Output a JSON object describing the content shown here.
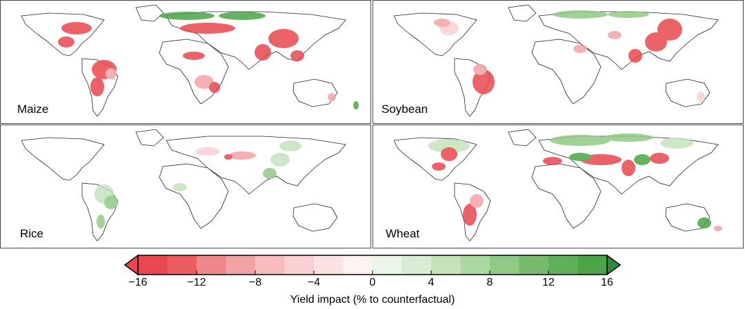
{
  "panels": [
    {
      "label": "Maize"
    },
    {
      "label": "Soybean"
    },
    {
      "label": "Rice"
    },
    {
      "label": "Wheat"
    }
  ],
  "colorbar": {
    "title": "Yield impact (% to counterfactual)",
    "ticks": [
      "−16",
      "−12",
      "−8",
      "−4",
      "0",
      "4",
      "8",
      "12",
      "16"
    ],
    "min": -16,
    "max": 16,
    "colors": [
      "#e8474f",
      "#ec5d63",
      "#f0878a",
      "#f3a3a6",
      "#f6bcbe",
      "#f8d0d2",
      "#fae2e3",
      "#fdf2f2",
      "#eaf4e7",
      "#d7ecd2",
      "#c3e3bb",
      "#abd7a0",
      "#91c986",
      "#76bb6c",
      "#5fb058",
      "#4ba547"
    ]
  }
}
